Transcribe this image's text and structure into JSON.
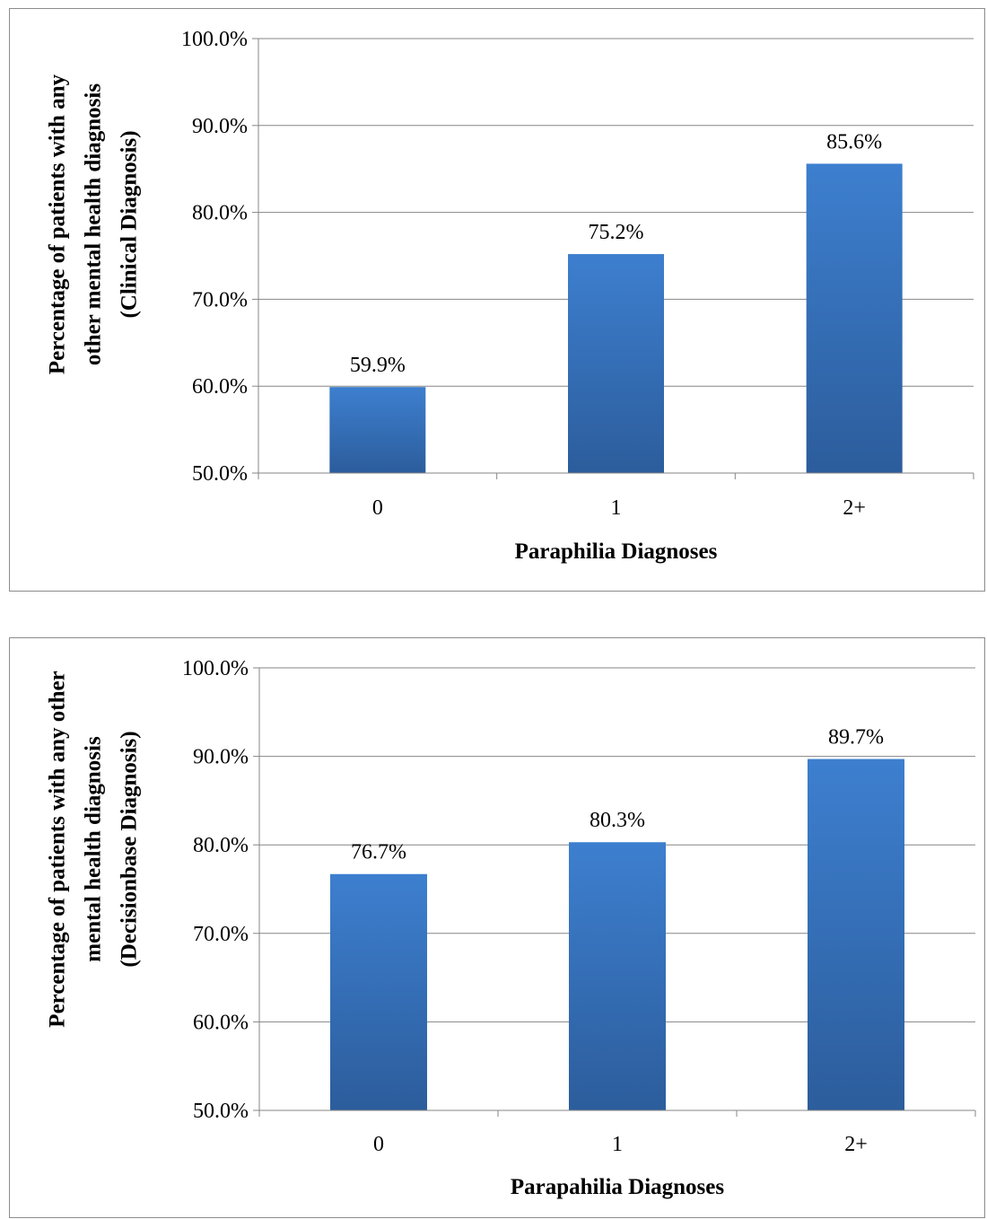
{
  "chart_data": [
    {
      "type": "bar",
      "categories": [
        "0",
        "1",
        "2+"
      ],
      "values": [
        59.9,
        75.2,
        85.6
      ],
      "data_labels": [
        "59.9%",
        "75.2%",
        "85.6%"
      ],
      "ylim": [
        50,
        100
      ],
      "yticks": [
        50,
        60,
        70,
        80,
        90,
        100
      ],
      "ytick_labels": [
        "50.0%",
        "60.0%",
        "70.0%",
        "80.0%",
        "90.0%",
        "100.0%"
      ],
      "xlabel": "Paraphilia Diagnoses",
      "ylabel_lines": [
        "Percentage of patients with any",
        "other mental health diagnosis",
        "(Clinical Diagnosis)"
      ],
      "grid": true,
      "bar_color": "#3a78c4"
    },
    {
      "type": "bar",
      "categories": [
        "0",
        "1",
        "2+"
      ],
      "values": [
        76.7,
        80.3,
        89.7
      ],
      "data_labels": [
        "76.7%",
        "80.3%",
        "89.7%"
      ],
      "ylim": [
        50,
        100
      ],
      "yticks": [
        50,
        60,
        70,
        80,
        90,
        100
      ],
      "ytick_labels": [
        "50.0%",
        "60.0%",
        "70.0%",
        "80.0%",
        "90.0%",
        "100.0%"
      ],
      "xlabel": "Parapahilia Diagnoses",
      "ylabel_lines": [
        "Percentage of patients with any other",
        "mental health diagnosis",
        "(Decisionbase Diagnosis)"
      ],
      "grid": true,
      "bar_color": "#3a78c4"
    }
  ]
}
